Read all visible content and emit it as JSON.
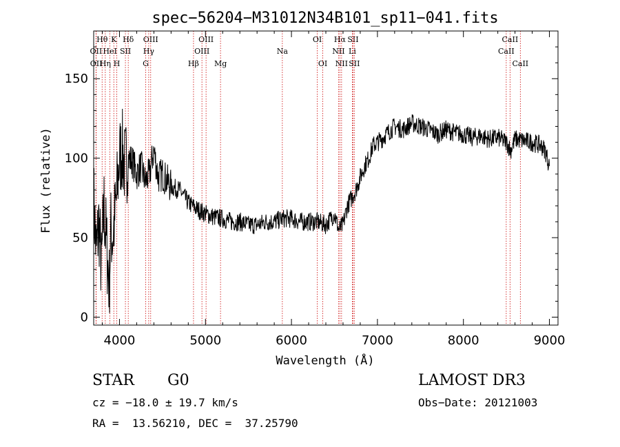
{
  "chart_data": {
    "type": "line",
    "title": "spec−56204−M31012N34B101_sp11−041.fits",
    "xlabel": "Wavelength (Å)",
    "ylabel": "Flux (relative)",
    "xlim": [
      3700,
      9100
    ],
    "ylim": [
      -5,
      180
    ],
    "xticks": [
      4000,
      5000,
      6000,
      7000,
      8000,
      9000
    ],
    "yticks": [
      0,
      50,
      100,
      150
    ],
    "grid": false,
    "series": [
      {
        "x": [
          3700,
          3730,
          3760,
          3790,
          3820,
          3850,
          3880,
          3900,
          3920,
          3950,
          3980,
          4000,
          4030,
          4060,
          4100,
          4150,
          4200,
          4250,
          4300,
          4350,
          4400,
          4450,
          4500,
          4600,
          4700,
          4800,
          4900,
          5000,
          5100,
          5200,
          5300,
          5400,
          5500,
          5600,
          5700,
          5800,
          5900,
          6000,
          6100,
          6200,
          6300,
          6400,
          6500,
          6550,
          6600,
          6650,
          6700,
          6750,
          6800,
          6850,
          6900,
          6950,
          7000,
          7050,
          7100,
          7200,
          7300,
          7400,
          7500,
          7600,
          7700,
          7800,
          7900,
          8000,
          8100,
          8200,
          8300,
          8400,
          8500,
          8550,
          8600,
          8700,
          8800,
          8900,
          8950,
          9000
        ],
        "y": [
          75,
          40,
          60,
          30,
          70,
          45,
          20,
          55,
          50,
          65,
          85,
          100,
          105,
          95,
          100,
          98,
          90,
          95,
          85,
          90,
          105,
          88,
          90,
          82,
          80,
          72,
          68,
          65,
          63,
          62,
          60,
          60,
          58,
          58,
          60,
          60,
          62,
          62,
          60,
          60,
          60,
          58,
          65,
          55,
          58,
          70,
          75,
          80,
          88,
          95,
          100,
          108,
          110,
          112,
          115,
          120,
          118,
          122,
          120,
          118,
          115,
          118,
          116,
          115,
          113,
          114,
          112,
          113,
          110,
          105,
          112,
          111,
          110,
          108,
          105,
          95
        ]
      }
    ],
    "line_markers": [
      {
        "label": "Hθ",
        "wave": 3798,
        "row": 1
      },
      {
        "label": "OII",
        "wave": 3727,
        "row": 2
      },
      {
        "label": "OII",
        "wave": 3729,
        "row": 3
      },
      {
        "label": "K",
        "wave": 3934,
        "row": 1
      },
      {
        "label": "HeI",
        "wave": 3889,
        "row": 2
      },
      {
        "label": "Hη",
        "wave": 3835,
        "row": 3
      },
      {
        "label": "Hδ",
        "wave": 4102,
        "row": 1
      },
      {
        "label": "SII",
        "wave": 4069,
        "row": 2
      },
      {
        "label": "H",
        "wave": 3969,
        "row": 3
      },
      {
        "label": "OIII",
        "wave": 4363,
        "row": 1
      },
      {
        "label": "Hγ",
        "wave": 4340,
        "row": 2
      },
      {
        "label": "G",
        "wave": 4305,
        "row": 3
      },
      {
        "label": "OIII",
        "wave": 5007,
        "row": 1
      },
      {
        "label": "OIII",
        "wave": 4959,
        "row": 2
      },
      {
        "label": "Hβ",
        "wave": 4861,
        "row": 3
      },
      {
        "label": "Mg",
        "wave": 5175,
        "row": 3
      },
      {
        "label": "Na",
        "wave": 5894,
        "row": 2
      },
      {
        "label": "OI",
        "wave": 6300,
        "row": 1
      },
      {
        "label": "OI",
        "wave": 6364,
        "row": 3
      },
      {
        "label": "Hα",
        "wave": 6563,
        "row": 1
      },
      {
        "label": "SII",
        "wave": 6716,
        "row": 1
      },
      {
        "label": "NII",
        "wave": 6548,
        "row": 2
      },
      {
        "label": "Li",
        "wave": 6708,
        "row": 2
      },
      {
        "label": "NII",
        "wave": 6583,
        "row": 3
      },
      {
        "label": "SII",
        "wave": 6731,
        "row": 3
      },
      {
        "label": "CaII",
        "wave": 8542,
        "row": 1
      },
      {
        "label": "CaII",
        "wave": 8498,
        "row": 2
      },
      {
        "label": "CaII",
        "wave": 8662,
        "row": 3
      }
    ],
    "line_color": "#000000",
    "marker_color": "#cc0000"
  },
  "info": {
    "class_label": "STAR",
    "subclass_label": "G0",
    "survey_label": "LAMOST DR3",
    "cz_text": "cz = −18.0 ± 19.7 km/s",
    "obsdate_text": "Obs−Date: 20121003",
    "radec_text": "RA =  13.56210, DEC =  37.25790"
  }
}
